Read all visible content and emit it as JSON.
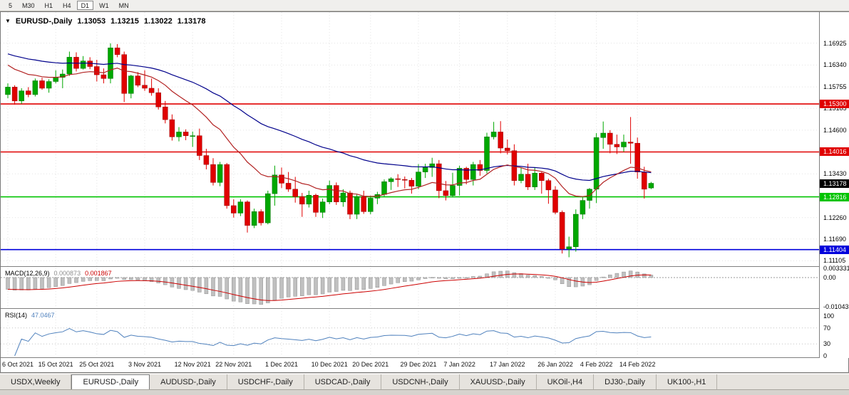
{
  "toolbar": {
    "timeframes": [
      {
        "label": "5",
        "active": false
      },
      {
        "label": "M30",
        "active": false
      },
      {
        "label": "H1",
        "active": false
      },
      {
        "label": "H4",
        "active": false
      },
      {
        "label": "D1",
        "active": true
      },
      {
        "label": "W1",
        "active": false
      },
      {
        "label": "MN",
        "active": false
      }
    ]
  },
  "chart_title": {
    "symbol": "EURUSD-,Daily",
    "open": "1.13053",
    "high": "1.13215",
    "low": "1.13022",
    "close": "1.13178"
  },
  "macd_panel": {
    "label": "MACD(12,26,9)",
    "main_value": "0.000873",
    "signal_value": "0.001867",
    "axis_labels": [
      "0.003331",
      "0.00",
      "-0.010431"
    ]
  },
  "rsi_panel": {
    "label": "RSI(14)",
    "value": "47.0467",
    "axis_labels": [
      "100",
      "70",
      "30",
      "0"
    ]
  },
  "tabs": [
    {
      "label": "USDX,Weekly",
      "active": false
    },
    {
      "label": "EURUSD-,Daily",
      "active": true
    },
    {
      "label": "AUDUSD-,Daily",
      "active": false
    },
    {
      "label": "USDCHF-,Daily",
      "active": false
    },
    {
      "label": "USDCAD-,Daily",
      "active": false
    },
    {
      "label": "USDCNH-,Daily",
      "active": false
    },
    {
      "label": "XAUUSD-,Daily",
      "active": false
    },
    {
      "label": "UKOil-,H4",
      "active": false
    },
    {
      "label": "DJ30-,Daily",
      "active": false
    },
    {
      "label": "UK100-,H1",
      "active": false
    }
  ],
  "chart_data": {
    "type": "candlestick",
    "title": "EURUSD-,Daily",
    "ylim": [
      1.1098,
      1.1768
    ],
    "y_ticks": [
      "1.16925",
      "1.16340",
      "1.15755",
      "1.15185",
      "1.14600",
      "1.13430",
      "1.12260",
      "1.11690",
      "1.11105"
    ],
    "x_ticks": [
      {
        "i": 0,
        "label": "6 Oct 2021"
      },
      {
        "i": 7,
        "label": "15 Oct 2021"
      },
      {
        "i": 13,
        "label": "25 Oct 2021"
      },
      {
        "i": 20,
        "label": "3 Nov 2021"
      },
      {
        "i": 27,
        "label": "12 Nov 2021"
      },
      {
        "i": 33,
        "label": "22 Nov 2021"
      },
      {
        "i": 40,
        "label": "1 Dec 2021"
      },
      {
        "i": 47,
        "label": "10 Dec 2021"
      },
      {
        "i": 53,
        "label": "20 Dec 2021"
      },
      {
        "i": 60,
        "label": "29 Dec 2021"
      },
      {
        "i": 66,
        "label": "7 Jan 2022"
      },
      {
        "i": 73,
        "label": "17 Jan 2022"
      },
      {
        "i": 80,
        "label": "26 Jan 2022"
      },
      {
        "i": 86,
        "label": "4 Feb 2022"
      },
      {
        "i": 92,
        "label": "14 Feb 2022"
      }
    ],
    "ohlc": [
      [
        1.1555,
        1.1585,
        1.1545,
        1.1575
      ],
      [
        1.1575,
        1.158,
        1.1528,
        1.1538
      ],
      [
        1.1538,
        1.1572,
        1.153,
        1.1565
      ],
      [
        1.1565,
        1.1575,
        1.1548,
        1.1555
      ],
      [
        1.1555,
        1.1598,
        1.155,
        1.1592
      ],
      [
        1.1592,
        1.16,
        1.1568,
        1.1572
      ],
      [
        1.1572,
        1.1596,
        1.156,
        1.159
      ],
      [
        1.159,
        1.162,
        1.1585,
        1.1601
      ],
      [
        1.1601,
        1.1622,
        1.1572,
        1.161
      ],
      [
        1.161,
        1.167,
        1.1605,
        1.1655
      ],
      [
        1.1655,
        1.1668,
        1.1617,
        1.1625
      ],
      [
        1.1625,
        1.1658,
        1.1622,
        1.1645
      ],
      [
        1.1645,
        1.1655,
        1.1623,
        1.163
      ],
      [
        1.163,
        1.1648,
        1.159,
        1.1608
      ],
      [
        1.1608,
        1.1625,
        1.1585,
        1.1598
      ],
      [
        1.1598,
        1.1692,
        1.1585,
        1.168
      ],
      [
        1.168,
        1.169,
        1.1655,
        1.1662
      ],
      [
        1.1662,
        1.167,
        1.1535,
        1.1558
      ],
      [
        1.1558,
        1.1608,
        1.1545,
        1.1605
      ],
      [
        1.1605,
        1.1615,
        1.1575,
        1.158
      ],
      [
        1.158,
        1.162,
        1.1565,
        1.1572
      ],
      [
        1.1572,
        1.1598,
        1.1552,
        1.156
      ],
      [
        1.156,
        1.1572,
        1.1515,
        1.1522
      ],
      [
        1.1522,
        1.1538,
        1.1478,
        1.1488
      ],
      [
        1.1488,
        1.1502,
        1.1432,
        1.1442
      ],
      [
        1.1442,
        1.1468,
        1.143,
        1.1455
      ],
      [
        1.1455,
        1.1462,
        1.1433,
        1.1445
      ],
      [
        1.1445,
        1.1456,
        1.1415,
        1.1445
      ],
      [
        1.1445,
        1.1464,
        1.138,
        1.1392
      ],
      [
        1.1392,
        1.141,
        1.1355,
        1.1368
      ],
      [
        1.1368,
        1.1385,
        1.1312,
        1.132
      ],
      [
        1.132,
        1.1375,
        1.131,
        1.1368
      ],
      [
        1.1368,
        1.1372,
        1.125,
        1.1258
      ],
      [
        1.1258,
        1.1275,
        1.1226,
        1.1238
      ],
      [
        1.1238,
        1.1275,
        1.123,
        1.1268
      ],
      [
        1.1268,
        1.1272,
        1.1186,
        1.1205
      ],
      [
        1.1205,
        1.125,
        1.1198,
        1.1242
      ],
      [
        1.1242,
        1.1248,
        1.1205,
        1.1212
      ],
      [
        1.1212,
        1.1298,
        1.1208,
        1.129
      ],
      [
        1.129,
        1.1365,
        1.1258,
        1.134
      ],
      [
        1.134,
        1.136,
        1.1305,
        1.1318
      ],
      [
        1.1318,
        1.1348,
        1.1295,
        1.1302
      ],
      [
        1.1302,
        1.1335,
        1.1266,
        1.1282
      ],
      [
        1.1282,
        1.1292,
        1.1228,
        1.1262
      ],
      [
        1.1262,
        1.1298,
        1.1253,
        1.1286
      ],
      [
        1.1286,
        1.129,
        1.1228,
        1.124
      ],
      [
        1.124,
        1.1277,
        1.1225,
        1.1268
      ],
      [
        1.1268,
        1.1325,
        1.1262,
        1.1312
      ],
      [
        1.1312,
        1.132,
        1.126,
        1.1268
      ],
      [
        1.1268,
        1.1302,
        1.1255,
        1.1292
      ],
      [
        1.1292,
        1.1298,
        1.1222,
        1.1235
      ],
      [
        1.1235,
        1.1288,
        1.1222,
        1.1282
      ],
      [
        1.1282,
        1.1298,
        1.1236,
        1.1242
      ],
      [
        1.1242,
        1.1285,
        1.1235,
        1.1278
      ],
      [
        1.1278,
        1.1295,
        1.1262,
        1.1288
      ],
      [
        1.1288,
        1.1328,
        1.1282,
        1.1322
      ],
      [
        1.1322,
        1.1334,
        1.13,
        1.133
      ],
      [
        1.133,
        1.1342,
        1.1308,
        1.1328
      ],
      [
        1.1328,
        1.1336,
        1.1304,
        1.1326
      ],
      [
        1.1326,
        1.1332,
        1.129,
        1.131
      ],
      [
        1.131,
        1.1369,
        1.1302,
        1.1348
      ],
      [
        1.1348,
        1.137,
        1.1332,
        1.136
      ],
      [
        1.136,
        1.1386,
        1.1335,
        1.137
      ],
      [
        1.137,
        1.138,
        1.1278,
        1.1298
      ],
      [
        1.1298,
        1.1324,
        1.1272,
        1.1285
      ],
      [
        1.1285,
        1.1346,
        1.128,
        1.1312
      ],
      [
        1.1312,
        1.1365,
        1.1285,
        1.1358
      ],
      [
        1.1358,
        1.1362,
        1.1315,
        1.1328
      ],
      [
        1.1328,
        1.1375,
        1.1312,
        1.1368
      ],
      [
        1.1368,
        1.138,
        1.1338,
        1.1352
      ],
      [
        1.1352,
        1.1453,
        1.1344,
        1.1442
      ],
      [
        1.1442,
        1.1482,
        1.1435,
        1.1455
      ],
      [
        1.1455,
        1.1484,
        1.1398,
        1.1412
      ],
      [
        1.1412,
        1.1435,
        1.1395,
        1.1405
      ],
      [
        1.1405,
        1.1422,
        1.1312,
        1.1325
      ],
      [
        1.1325,
        1.136,
        1.1318,
        1.1342
      ],
      [
        1.1342,
        1.137,
        1.13,
        1.1308
      ],
      [
        1.1308,
        1.136,
        1.13,
        1.1345
      ],
      [
        1.1345,
        1.1348,
        1.129,
        1.1325
      ],
      [
        1.1325,
        1.133,
        1.1263,
        1.13
      ],
      [
        1.13,
        1.131,
        1.1235,
        1.124
      ],
      [
        1.124,
        1.1245,
        1.113,
        1.1142
      ],
      [
        1.1142,
        1.1175,
        1.112,
        1.1148
      ],
      [
        1.1148,
        1.1248,
        1.1135,
        1.1235
      ],
      [
        1.1235,
        1.128,
        1.1222,
        1.1272
      ],
      [
        1.1272,
        1.1305,
        1.125,
        1.1302
      ],
      [
        1.1302,
        1.1452,
        1.1265,
        1.144
      ],
      [
        1.144,
        1.1483,
        1.141,
        1.1452
      ],
      [
        1.1452,
        1.146,
        1.1398,
        1.1422
      ],
      [
        1.1422,
        1.1448,
        1.1396,
        1.1415
      ],
      [
        1.1415,
        1.1448,
        1.1402,
        1.1428
      ],
      [
        1.1428,
        1.1495,
        1.137,
        1.1425
      ],
      [
        1.1425,
        1.144,
        1.133,
        1.1348
      ],
      [
        1.1348,
        1.1362,
        1.1277,
        1.1302
      ],
      [
        1.13053,
        1.13215,
        1.13022,
        1.13178
      ]
    ],
    "colors": {
      "bull": "#00a800",
      "bear": "#e00000",
      "ma_slow": "#00008b",
      "ma_fast": "#b22222",
      "macd_bar": "#c0c0c0",
      "macd_signal": "#cc0000",
      "rsi_line": "#4f81bd",
      "grid": "#e3e3e3"
    },
    "overlays": [
      {
        "name": "ma-slow",
        "type": "ema",
        "period": 45,
        "seed": 1.1668,
        "color": "#00008b"
      },
      {
        "name": "ma-fast",
        "type": "ema",
        "period": 16,
        "seed": 1.1642,
        "color": "#b22222"
      }
    ],
    "price_levels": [
      {
        "value": 1.153,
        "label": "1.15300",
        "color": "#e00000"
      },
      {
        "value": 1.14016,
        "label": "1.14016",
        "color": "#e00000"
      },
      {
        "value": 1.12816,
        "label": "1.12816",
        "color": "#00c400"
      },
      {
        "value": 1.11404,
        "label": "1.11404",
        "color": "#0000dc"
      }
    ],
    "current_price": {
      "value": 1.13178,
      "label": "1.13178",
      "color": "#000000"
    },
    "macd": {
      "fast": 12,
      "slow": 26,
      "signal_period": 9,
      "seed_fast": 1.162,
      "seed_slow": 1.1662,
      "ylim": [
        -0.0108,
        0.0036
      ]
    },
    "rsi": {
      "period": 14,
      "ylim": [
        0,
        100
      ],
      "guides": [
        70,
        30
      ]
    }
  }
}
